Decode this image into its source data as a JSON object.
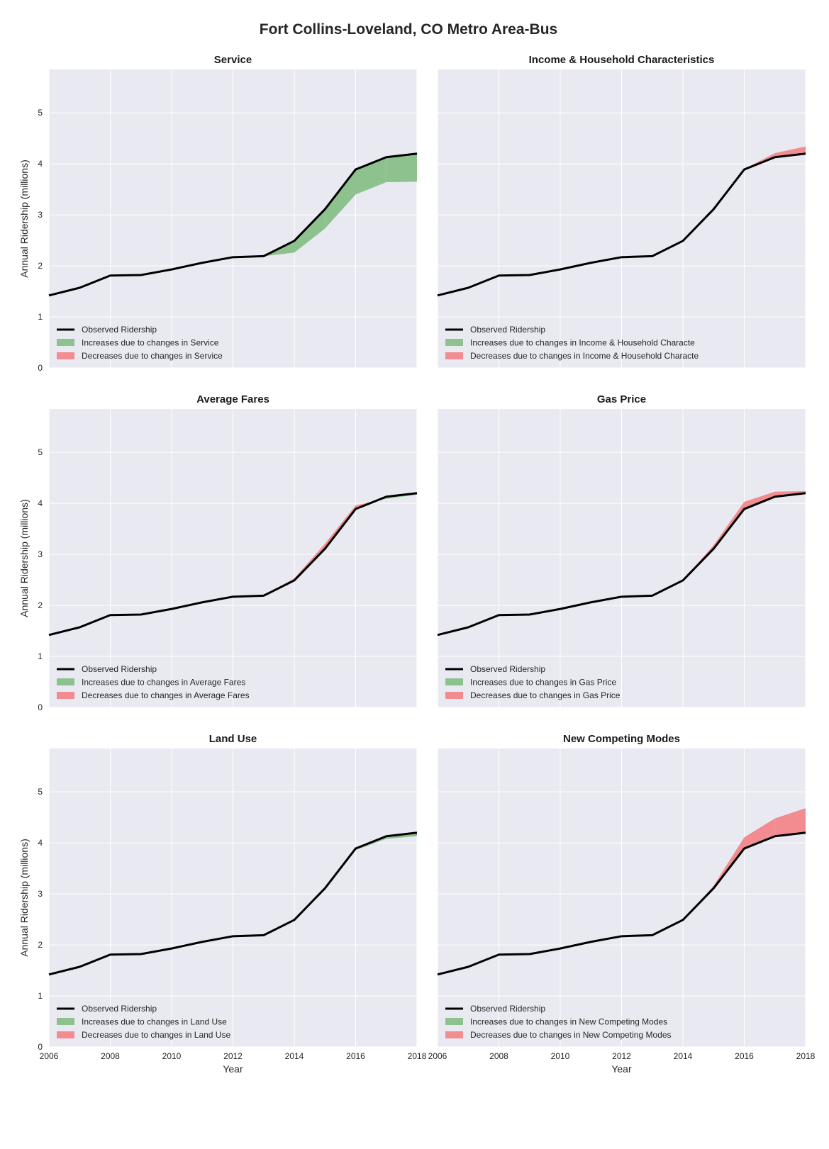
{
  "figure_title": "Fort Collins-Loveland, CO Metro Area-Bus",
  "colors": {
    "panel_bg": "#e9e9f1",
    "grid": "#ffffff",
    "observed": "#000000",
    "increase": "#8dc28f",
    "decrease": "#f28c90"
  },
  "chart_data": [
    {
      "type": "area",
      "title": "Service",
      "ylabel": "Annual Ridership (millions)",
      "xlabel": "",
      "x": [
        2006,
        2007,
        2008,
        2009,
        2010,
        2011,
        2012,
        2013,
        2014,
        2015,
        2016,
        2017,
        2018
      ],
      "observed": [
        1.42,
        1.57,
        1.81,
        1.82,
        1.93,
        2.06,
        2.17,
        2.19,
        2.49,
        3.11,
        3.89,
        4.13,
        4.2
      ],
      "counterfactual": [
        1.42,
        1.57,
        1.81,
        1.82,
        1.93,
        2.06,
        2.17,
        2.19,
        2.26,
        2.73,
        3.4,
        3.64,
        3.65
      ],
      "xlim": [
        2006,
        2018
      ],
      "ylim": [
        0,
        5.85
      ],
      "xticks": [],
      "yticks": [
        0,
        1,
        2,
        3,
        4,
        5
      ],
      "grid": true,
      "legend_position": "lower-left",
      "legend": [
        "Observed Ridership",
        "Increases due to changes in Service",
        "Decreases due to changes in Service"
      ]
    },
    {
      "type": "area",
      "title": "Income & Household Characteristics",
      "ylabel": "",
      "xlabel": "",
      "x": [
        2006,
        2007,
        2008,
        2009,
        2010,
        2011,
        2012,
        2013,
        2014,
        2015,
        2016,
        2017,
        2018
      ],
      "observed": [
        1.42,
        1.57,
        1.81,
        1.82,
        1.93,
        2.06,
        2.17,
        2.19,
        2.49,
        3.11,
        3.89,
        4.13,
        4.2
      ],
      "counterfactual": [
        1.42,
        1.57,
        1.81,
        1.82,
        1.93,
        2.06,
        2.17,
        2.19,
        2.49,
        3.11,
        3.9,
        4.21,
        4.34
      ],
      "xlim": [
        2006,
        2018
      ],
      "ylim": [
        0,
        5.85
      ],
      "xticks": [],
      "yticks": [],
      "grid": true,
      "legend_position": "lower-left",
      "legend": [
        "Observed Ridership",
        "Increases due to changes in Income & Household Characte",
        "Decreases due to changes in Income & Household Characte"
      ]
    },
    {
      "type": "area",
      "title": "Average Fares",
      "ylabel": "Annual Ridership (millions)",
      "xlabel": "",
      "x": [
        2006,
        2007,
        2008,
        2009,
        2010,
        2011,
        2012,
        2013,
        2014,
        2015,
        2016,
        2017,
        2018
      ],
      "observed": [
        1.42,
        1.57,
        1.81,
        1.82,
        1.93,
        2.06,
        2.17,
        2.19,
        2.49,
        3.11,
        3.89,
        4.13,
        4.2
      ],
      "counterfactual": [
        1.42,
        1.57,
        1.81,
        1.82,
        1.93,
        2.06,
        2.17,
        2.19,
        2.53,
        3.21,
        3.96,
        4.09,
        4.17
      ],
      "xlim": [
        2006,
        2018
      ],
      "ylim": [
        0,
        5.85
      ],
      "xticks": [],
      "yticks": [
        0,
        1,
        2,
        3,
        4,
        5
      ],
      "grid": true,
      "legend_position": "lower-left",
      "legend": [
        "Observed Ridership",
        "Increases due to changes in Average Fares",
        "Decreases due to changes in Average Fares"
      ]
    },
    {
      "type": "area",
      "title": "Gas Price",
      "ylabel": "",
      "xlabel": "",
      "x": [
        2006,
        2007,
        2008,
        2009,
        2010,
        2011,
        2012,
        2013,
        2014,
        2015,
        2016,
        2017,
        2018
      ],
      "observed": [
        1.42,
        1.57,
        1.81,
        1.82,
        1.93,
        2.06,
        2.17,
        2.19,
        2.49,
        3.11,
        3.89,
        4.13,
        4.2
      ],
      "counterfactual": [
        1.42,
        1.57,
        1.81,
        1.82,
        1.93,
        2.06,
        2.17,
        2.19,
        2.49,
        3.18,
        4.03,
        4.23,
        4.24
      ],
      "xlim": [
        2006,
        2018
      ],
      "ylim": [
        0,
        5.85
      ],
      "xticks": [],
      "yticks": [],
      "grid": true,
      "legend_position": "lower-left",
      "legend": [
        "Observed Ridership",
        "Increases due to changes in Gas Price",
        "Decreases due to changes in Gas Price"
      ]
    },
    {
      "type": "area",
      "title": "Land Use",
      "ylabel": "Annual Ridership (millions)",
      "xlabel": "Year",
      "x": [
        2006,
        2007,
        2008,
        2009,
        2010,
        2011,
        2012,
        2013,
        2014,
        2015,
        2016,
        2017,
        2018
      ],
      "observed": [
        1.42,
        1.57,
        1.81,
        1.82,
        1.93,
        2.06,
        2.17,
        2.19,
        2.49,
        3.11,
        3.89,
        4.13,
        4.2
      ],
      "counterfactual": [
        1.42,
        1.57,
        1.81,
        1.82,
        1.93,
        2.06,
        2.17,
        2.19,
        2.49,
        3.11,
        3.86,
        4.08,
        4.13
      ],
      "xlim": [
        2006,
        2018
      ],
      "ylim": [
        0,
        5.85
      ],
      "xticks": [
        2006,
        2008,
        2010,
        2012,
        2014,
        2016,
        2018
      ],
      "yticks": [
        0,
        1,
        2,
        3,
        4,
        5
      ],
      "grid": true,
      "legend_position": "lower-left",
      "legend": [
        "Observed Ridership",
        "Increases due to changes in Land Use",
        "Decreases due to changes in Land Use"
      ]
    },
    {
      "type": "area",
      "title": "New Competing Modes",
      "ylabel": "",
      "xlabel": "Year",
      "x": [
        2006,
        2007,
        2008,
        2009,
        2010,
        2011,
        2012,
        2013,
        2014,
        2015,
        2016,
        2017,
        2018
      ],
      "observed": [
        1.42,
        1.57,
        1.81,
        1.82,
        1.93,
        2.06,
        2.17,
        2.19,
        2.49,
        3.11,
        3.89,
        4.13,
        4.2
      ],
      "counterfactual": [
        1.42,
        1.57,
        1.81,
        1.82,
        1.93,
        2.06,
        2.17,
        2.19,
        2.49,
        3.16,
        4.11,
        4.48,
        4.68
      ],
      "xlim": [
        2006,
        2018
      ],
      "ylim": [
        0,
        5.85
      ],
      "xticks": [
        2006,
        2008,
        2010,
        2012,
        2014,
        2016,
        2018
      ],
      "yticks": [],
      "grid": true,
      "legend_position": "lower-left",
      "legend": [
        "Observed Ridership",
        "Increases due to changes in New Competing Modes",
        "Decreases due to changes in New Competing Modes"
      ]
    }
  ]
}
